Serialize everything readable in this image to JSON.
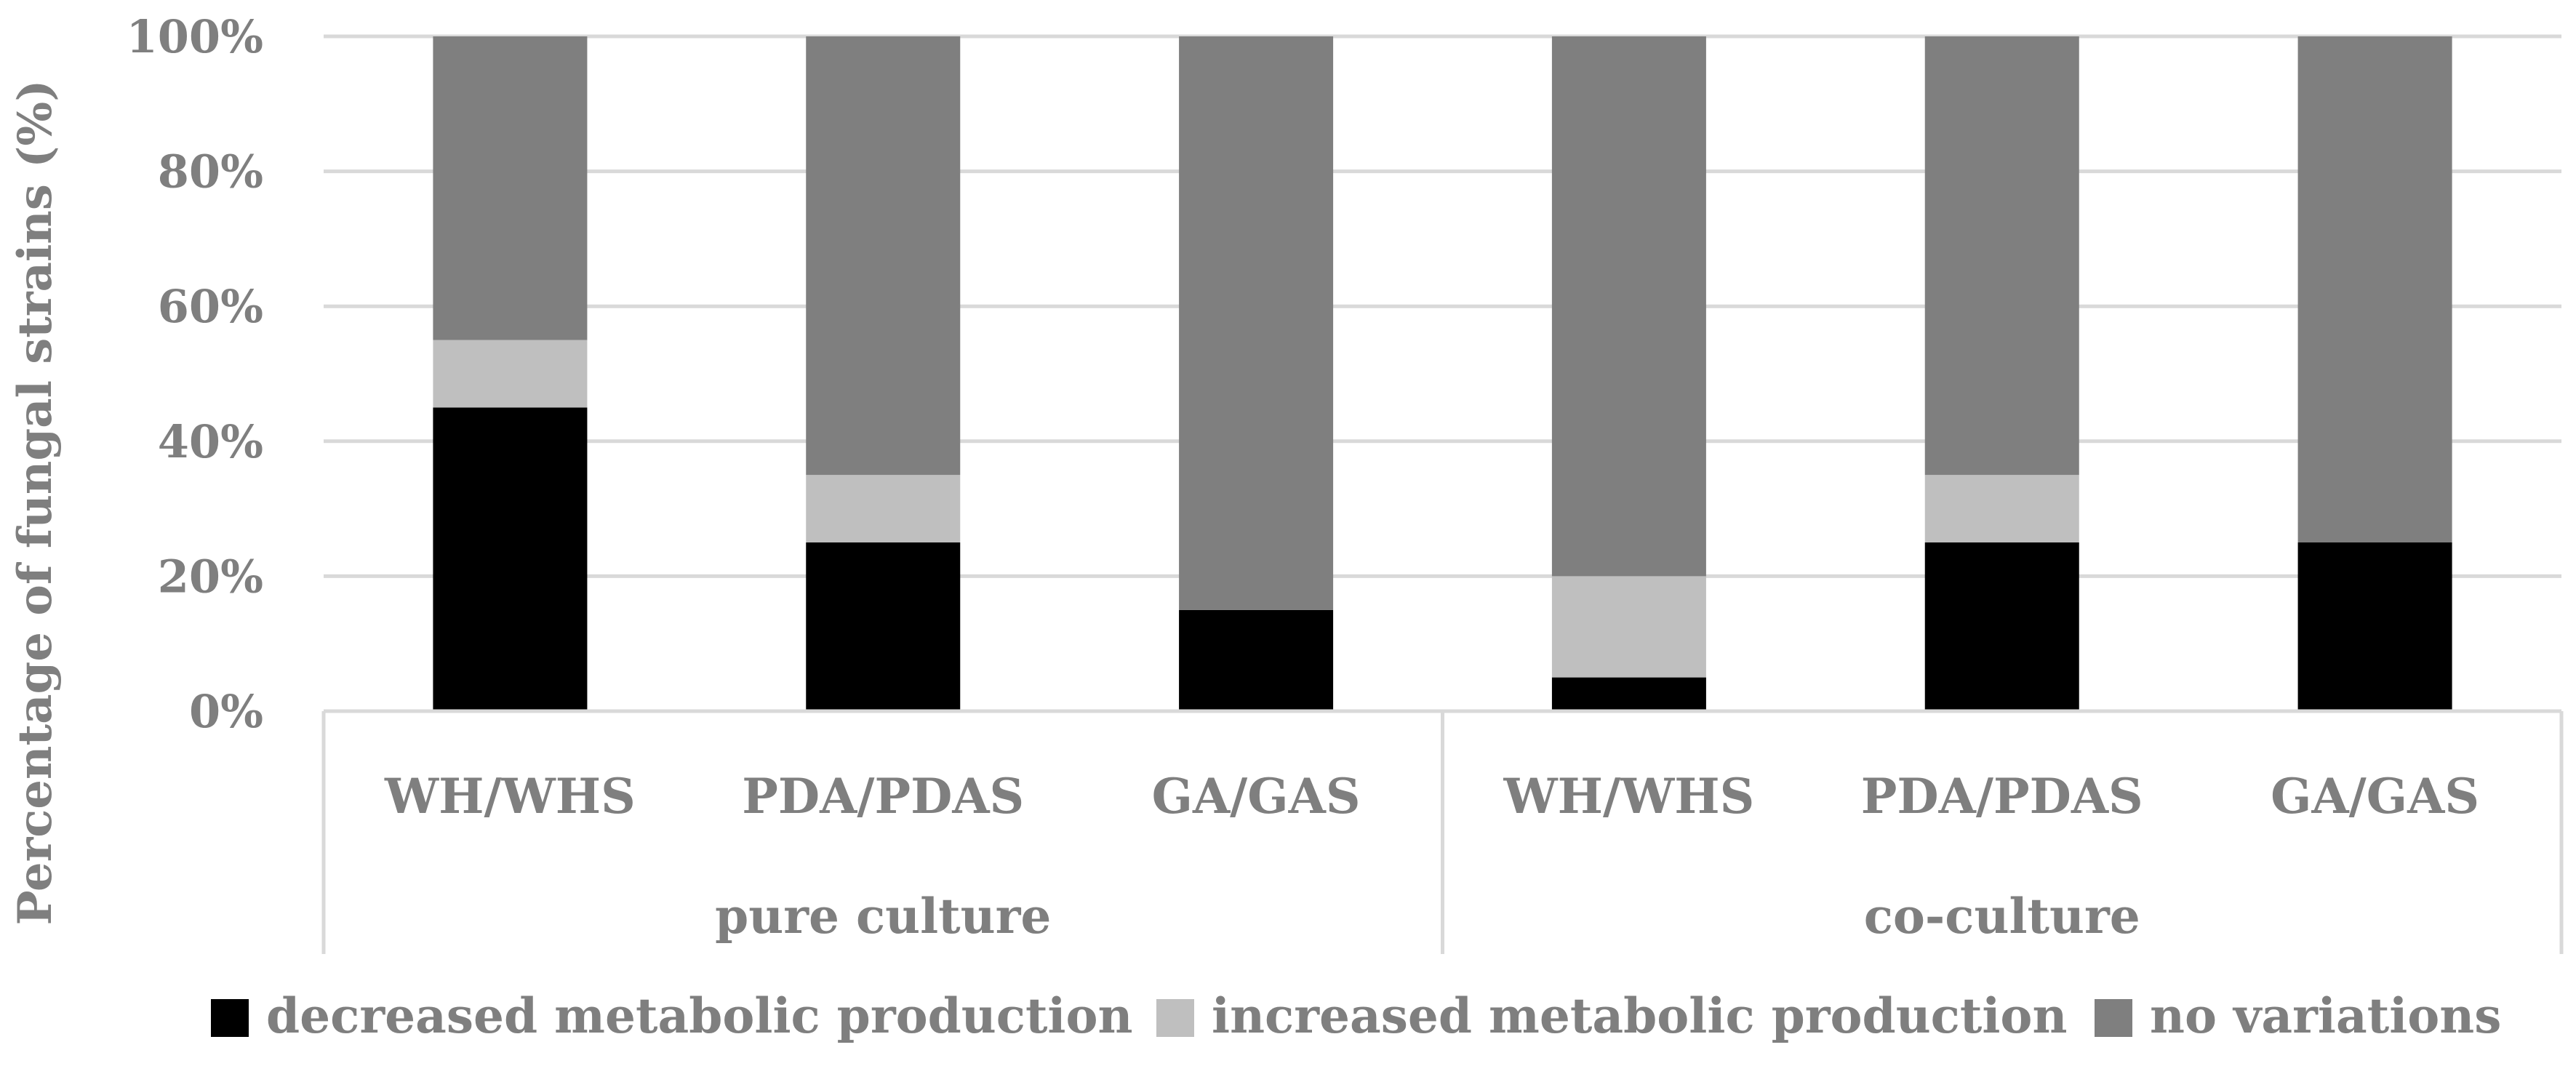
{
  "chart_data": {
    "type": "bar",
    "stacked": true,
    "title": "",
    "xlabel": "",
    "ylabel": "Percentage of fungal strains (%)",
    "ylim": [
      0,
      100
    ],
    "yticks": [
      "0%",
      "20%",
      "40%",
      "60%",
      "80%",
      "100%"
    ],
    "groups": [
      {
        "label": "pure culture",
        "categories": [
          "WH/WHS",
          "PDA/PDAS",
          "GA/GAS"
        ]
      },
      {
        "label": "co-culture",
        "categories": [
          "WH/WHS",
          "PDA/PDAS",
          "GA/GAS"
        ]
      }
    ],
    "series": [
      {
        "name": "decreased metabolic production",
        "color": "#000000",
        "values": [
          45,
          25,
          15,
          5,
          25,
          25
        ]
      },
      {
        "name": "increased metabolic production",
        "color": "#bfbfbf",
        "values": [
          10,
          10,
          0,
          15,
          10,
          0
        ]
      },
      {
        "name": "no variations",
        "color": "#7f7f7f",
        "values": [
          45,
          65,
          85,
          80,
          65,
          75
        ]
      }
    ],
    "legend_position": "bottom",
    "grid": true
  }
}
